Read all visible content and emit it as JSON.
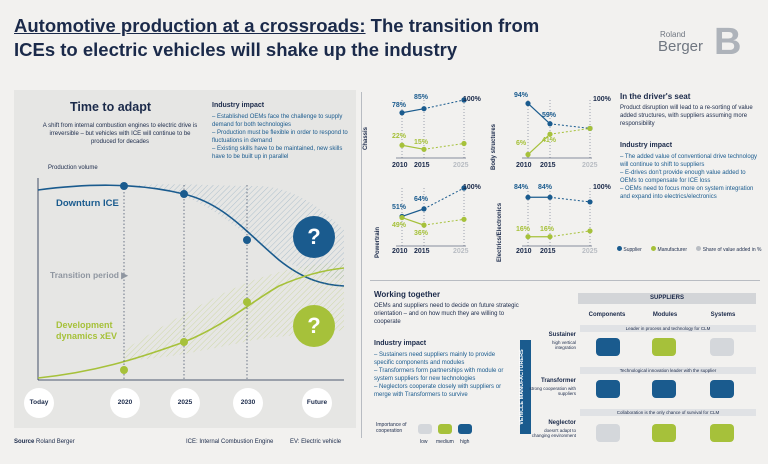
{
  "header": {
    "title_underlined": "Automotive production at a crossroads:",
    "title_rest_line1": " The transition from",
    "title_line2": "ICEs to electric vehicles will shake up the industry",
    "logo_line1": "Roland",
    "logo_line2": "Berger",
    "logo_mark": "B"
  },
  "left": {
    "heading": "Time to adapt",
    "intro": "A shift from internal combustion engines to electric drive is irreversible – but vehicles with ICE will continue to be produced for decades",
    "impact_heading": "Industry impact",
    "impact_items": [
      "– Established OEMs face the challenge to supply demand for both technologies",
      "– Production must be flexible in order to respond to fluctuations in demand",
      "– Existing skills have to be maintained, new skills have to be built up in parallel"
    ],
    "yaxis_label": "Production volume",
    "downturn_label": "Downturn ICE",
    "transition_label": "Transition period ▶",
    "development_label": "Development dynamics xEV",
    "question": "?",
    "x_ticks": [
      "Today",
      "2020",
      "2025",
      "2030",
      "Future"
    ],
    "source_prefix": "Source",
    "source_name": "Roland Berger",
    "footnote_ice": "ICE: Internal Combustion Engine",
    "footnote_ev": "EV: Electric vehicle"
  },
  "chart_data": [
    {
      "type": "line",
      "category": "Chassis",
      "x": [
        "2010",
        "2015",
        "2025"
      ],
      "series": [
        {
          "name": "Supplier",
          "values": [
            78,
            85,
            100
          ]
        },
        {
          "name": "Manufacturer",
          "values": [
            22,
            15,
            null
          ]
        }
      ],
      "ylim": [
        0,
        100
      ],
      "label_top": "100%"
    },
    {
      "type": "line",
      "category": "Body structures",
      "x": [
        "2010",
        "2015",
        "2025"
      ],
      "series": [
        {
          "name": "Supplier",
          "values": [
            94,
            59,
            null
          ]
        },
        {
          "name": "Manufacturer",
          "values": [
            6,
            41,
            null
          ]
        }
      ],
      "ylim": [
        0,
        100
      ],
      "label_top": "100%"
    },
    {
      "type": "line",
      "category": "Powertrain",
      "x": [
        "2010",
        "2015",
        "2025"
      ],
      "series": [
        {
          "name": "Supplier",
          "values": [
            51,
            64,
            100
          ]
        },
        {
          "name": "Manufacturer",
          "values": [
            49,
            36,
            null
          ]
        }
      ],
      "ylim": [
        0,
        100
      ],
      "label_top": "100%"
    },
    {
      "type": "line",
      "category": "Electrics/Electronics",
      "x": [
        "2010",
        "2015",
        "2025"
      ],
      "series": [
        {
          "name": "Supplier",
          "values": [
            84,
            84,
            null
          ]
        },
        {
          "name": "Manufacturer",
          "values": [
            16,
            16,
            null
          ]
        }
      ],
      "ylim": [
        0,
        100
      ],
      "label_top": "100%"
    }
  ],
  "small_charts": {
    "labels": [
      {
        "cat": "Chassis",
        "sup": [
          "78%",
          "85%"
        ],
        "man": [
          "22%",
          "15%"
        ],
        "top": "100%"
      },
      {
        "cat": "Body structures",
        "sup": [
          "94%",
          "59%"
        ],
        "man": [
          "6%",
          "41%"
        ],
        "top": "100%"
      },
      {
        "cat": "Powertrain",
        "sup": [
          "51%",
          "64%"
        ],
        "man": [
          "49%",
          "36%"
        ],
        "top": "100%"
      },
      {
        "cat": "Electrics/Electronics",
        "sup": [
          "84%",
          "84%"
        ],
        "man": [
          "16%",
          "16%"
        ],
        "top": "100%"
      }
    ],
    "years": [
      "2010",
      "2015",
      "2025"
    ],
    "legend_supplier": "Supplier",
    "legend_manufacturer": "Manufacturer",
    "legend_share": "Share of value added in %"
  },
  "drivers_seat": {
    "heading": "In the driver's seat",
    "intro": "Product disruption will lead to a re-sorting of value added structures, with suppliers assuming more responsibility",
    "impact_heading": "Industry impact",
    "items": [
      "– The added value of conventional drive technology will continue to shift to suppliers",
      "– E-drives don't provide enough value added to OEMs to compensate for ICE loss",
      "– OEMs need to focus more on system integration and expand into electrics/electronics"
    ]
  },
  "working": {
    "heading": "Working together",
    "intro": "OEMs and suppliers need to decide on future strategic orientation – and on how much they are willing to cooperate",
    "impact_heading": "Industry impact",
    "items": [
      "– Sustainers need suppliers mainly to provide specific components and modules",
      "– Transformers form partnerships with module or system suppliers for new technologies",
      "– Neglectors cooperate closely with suppliers or merge with Transformers to survive"
    ],
    "coop_label": "Importance of cooperation",
    "coop_levels": [
      "low",
      "medium",
      "high"
    ]
  },
  "matrix": {
    "suppliers_label": "SUPPLIERS",
    "columns": [
      "Components",
      "Modules",
      "Systems"
    ],
    "vm_label": "VEHICLE MANUFACTURERS",
    "rows": [
      {
        "name": "Sustainer",
        "desc": "high vertical integration",
        "banner": "Leader in process and technology for CLM",
        "levels": [
          "high",
          "medium",
          "low"
        ]
      },
      {
        "name": "Transformer",
        "desc": "strong cooperation with suppliers",
        "banner": "Technological innovation leader with the supplier",
        "levels": [
          "high",
          "high",
          "high"
        ]
      },
      {
        "name": "Neglector",
        "desc": "doesn't adapt to changing environment",
        "banner": "Collaboration is the only chance of survival for CLM",
        "levels": [
          "low",
          "medium",
          "medium"
        ]
      }
    ]
  },
  "colors": {
    "navy": "#1b2a4a",
    "blue": "#1a5b8e",
    "green": "#a6c13a",
    "grey": "#b9bdc3"
  }
}
